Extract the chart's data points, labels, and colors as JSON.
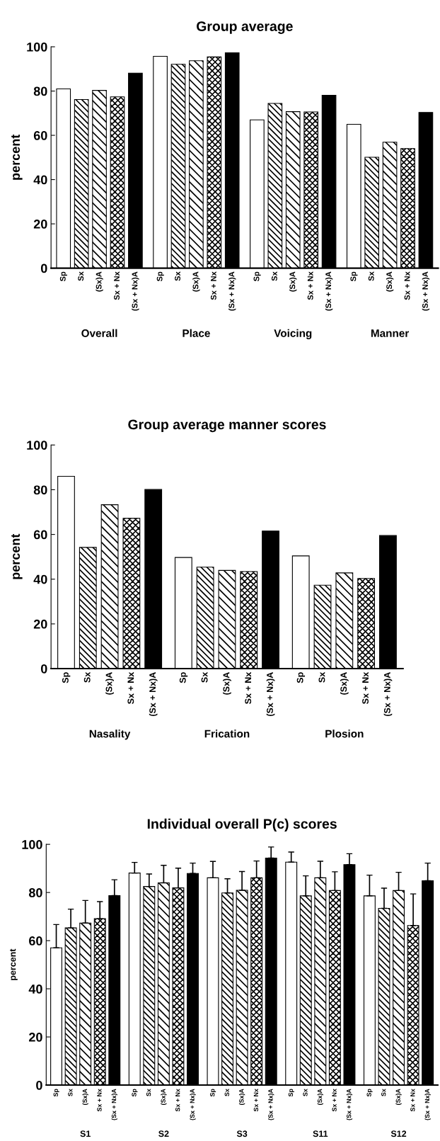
{
  "chart_data": [
    {
      "type": "bar",
      "title": "Group average",
      "ylabel": "percent",
      "categories": [
        "Overall",
        "Place",
        "Voicing",
        "Manner"
      ],
      "ylim": [
        0,
        100
      ],
      "yticks": [
        0,
        20,
        40,
        60,
        80,
        100
      ],
      "series": [
        {
          "name": "Sp",
          "color": "#ffffff",
          "values": [
            81.0,
            95.7,
            67.0,
            65.0
          ]
        },
        {
          "name": "Sx",
          "color": "#000000",
          "values": [
            76.2,
            92.1,
            74.4,
            50.1
          ]
        },
        {
          "name": "(Sx)A",
          "color": "#000000",
          "values": [
            80.3,
            93.7,
            70.7,
            56.9
          ]
        },
        {
          "name": "Sx + Nx",
          "color": "#000000",
          "values": [
            77.4,
            95.4,
            70.6,
            54.0
          ]
        },
        {
          "name": "(Sx + Nx)A",
          "color": "#000000",
          "values": [
            88.1,
            97.3,
            78.1,
            70.3
          ]
        }
      ]
    },
    {
      "type": "bar",
      "title": "Group average manner scores",
      "ylabel": "percent",
      "categories": [
        "Nasality",
        "Frication",
        "Plosion"
      ],
      "ylim": [
        0,
        100
      ],
      "yticks": [
        0,
        20,
        40,
        60,
        80,
        100
      ],
      "series": [
        {
          "name": "Sp",
          "color": "#ffffff",
          "values": [
            86.0,
            49.7,
            50.4
          ]
        },
        {
          "name": "Sx",
          "color": "#000000",
          "values": [
            54.2,
            45.4,
            37.3
          ]
        },
        {
          "name": "(Sx)A",
          "color": "#000000",
          "values": [
            73.3,
            43.9,
            42.8
          ]
        },
        {
          "name": "Sx + Nx",
          "color": "#000000",
          "values": [
            67.2,
            43.4,
            40.3
          ]
        },
        {
          "name": "(Sx + Nx)A",
          "color": "#000000",
          "values": [
            80.1,
            61.5,
            59.5
          ]
        }
      ]
    },
    {
      "type": "bar",
      "title": "Individual overall P(c) scores",
      "ylabel": "percent",
      "categories": [
        "S1",
        "S2",
        "S3",
        "S11",
        "S12"
      ],
      "ylim": [
        0,
        100
      ],
      "yticks": [
        0,
        20,
        40,
        60,
        80,
        100
      ],
      "series": [
        {
          "name": "Sp",
          "color": "#ffffff",
          "values": [
            57.0,
            88.1,
            86.1,
            92.6,
            78.6
          ],
          "errors": [
            [
              57.0,
              66.7
            ],
            [
              88.1,
              92.5
            ],
            [
              86.1,
              92.9
            ],
            [
              92.6,
              96.8
            ],
            [
              78.6,
              87.2
            ]
          ]
        },
        {
          "name": "Sx",
          "color": "#000000",
          "values": [
            65.3,
            82.5,
            79.8,
            78.6,
            73.4
          ],
          "errors": [
            [
              65.3,
              73.1
            ],
            [
              82.5,
              87.7
            ],
            [
              79.8,
              85.7
            ],
            [
              78.6,
              86.9
            ],
            [
              73.4,
              81.8
            ]
          ]
        },
        {
          "name": "(Sx)A",
          "color": "#000000",
          "values": [
            67.3,
            84.0,
            80.9,
            86.1,
            80.8
          ],
          "errors": [
            [
              67.3,
              76.7
            ],
            [
              84.0,
              91.3
            ],
            [
              80.9,
              88.7
            ],
            [
              86.1,
              93.0
            ],
            [
              80.8,
              88.4
            ]
          ]
        },
        {
          "name": "Sx + Nx",
          "color": "#000000",
          "values": [
            69.1,
            81.9,
            86.1,
            80.8,
            66.3
          ],
          "errors": [
            [
              69.1,
              76.2
            ],
            [
              81.9,
              90.1
            ],
            [
              86.1,
              93.1
            ],
            [
              80.8,
              88.6
            ],
            [
              66.3,
              79.4
            ]
          ]
        },
        {
          "name": "(Sx + Nx)A",
          "color": "#000000",
          "values": [
            78.7,
            87.9,
            94.3,
            91.6,
            84.9
          ],
          "errors": [
            [
              78.7,
              85.3
            ],
            [
              87.9,
              92.2
            ],
            [
              94.3,
              98.9
            ],
            [
              91.6,
              96.1
            ],
            [
              84.9,
              92.2
            ]
          ]
        }
      ]
    }
  ]
}
